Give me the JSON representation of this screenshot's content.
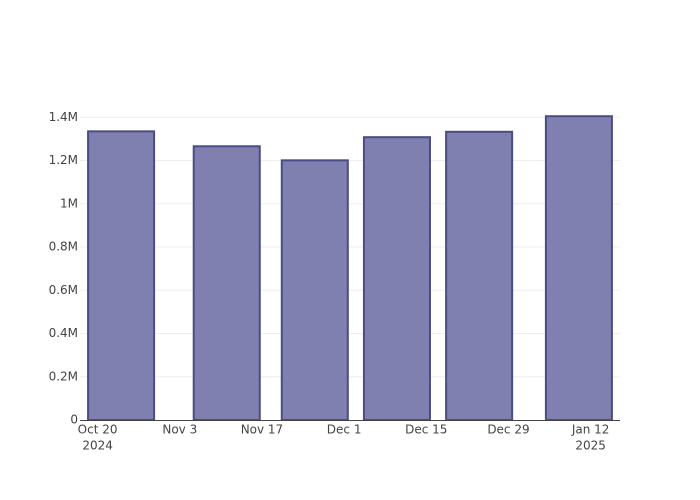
{
  "chart_data": {
    "type": "bar",
    "x": [
      "2024-10-24",
      "2024-11-11",
      "2024-11-26",
      "2024-12-10",
      "2024-12-24",
      "2025-01-10"
    ],
    "values": [
      1335000,
      1266000,
      1201000,
      1308000,
      1333000,
      1405000
    ],
    "bar_width_days": 11.25,
    "color": "#7f7fb0",
    "line_color": "#4b4b86",
    "xlim": [
      "2024-10-17",
      "2025-01-17"
    ],
    "xticks": [
      {
        "value": "2024-10-20",
        "label": "Oct 20",
        "sublabel": "2024"
      },
      {
        "value": "2024-11-03",
        "label": "Nov 3"
      },
      {
        "value": "2024-11-17",
        "label": "Nov 17"
      },
      {
        "value": "2024-12-01",
        "label": "Dec 1"
      },
      {
        "value": "2024-12-15",
        "label": "Dec 15"
      },
      {
        "value": "2024-12-29",
        "label": "Dec 29"
      },
      {
        "value": "2025-01-12",
        "label": "Jan 12",
        "sublabel": "2025"
      }
    ],
    "ylim": [
      0,
      1480000
    ],
    "yticks": [
      {
        "value": 0,
        "label": "0"
      },
      {
        "value": 200000,
        "label": "0.2M"
      },
      {
        "value": 400000,
        "label": "0.4M"
      },
      {
        "value": 600000,
        "label": "0.6M"
      },
      {
        "value": 800000,
        "label": "0.8M"
      },
      {
        "value": 1000000,
        "label": "1M"
      },
      {
        "value": 1200000,
        "label": "1.2M"
      },
      {
        "value": 1400000,
        "label": "1.4M"
      }
    ],
    "grid": true
  }
}
